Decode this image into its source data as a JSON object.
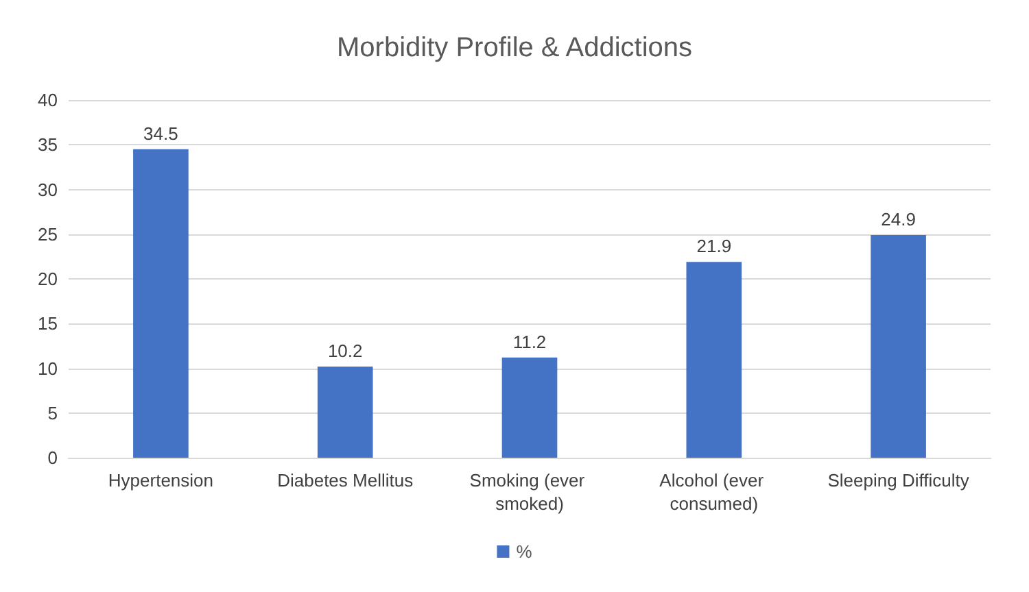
{
  "chart_data": {
    "type": "bar",
    "title": "Morbidity Profile & Addictions",
    "categories": [
      "Hypertension",
      "Diabetes Mellitus",
      "Smoking (ever smoked)",
      "Alcohol (ever consumed)",
      "Sleeping Difficulty"
    ],
    "series": [
      {
        "name": "%",
        "color": "#4472c4",
        "values": [
          34.5,
          10.2,
          11.2,
          21.9,
          24.9
        ]
      }
    ],
    "ylim": [
      0,
      40
    ],
    "yticks": [
      0,
      5,
      10,
      15,
      20,
      25,
      30,
      35,
      40
    ],
    "grid": "y",
    "legend": "bottom",
    "data_labels": true
  }
}
